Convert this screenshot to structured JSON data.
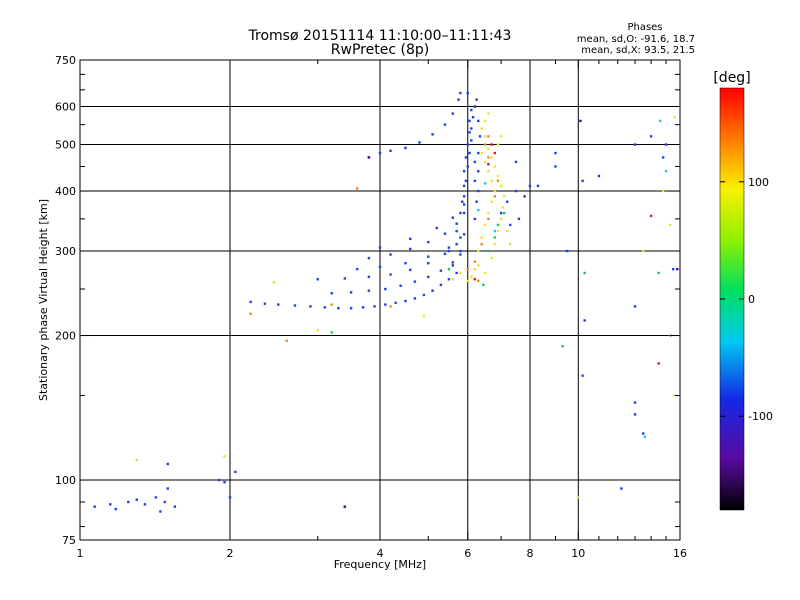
{
  "chart_data": {
    "type": "scatter",
    "title": "Tromsø 20151114 11:10:00–11:11:43",
    "subtitle": "RwPretec (8p)",
    "phases": {
      "heading": "Phases",
      "line1": "mean, sd,O: -91.6, 18.7",
      "line2": "mean, sd,X:  93.5, 21.5"
    },
    "xlabel": "Frequency [MHz]",
    "ylabel": "Stationary phase Virtual Height [km]",
    "xscale": "log",
    "yscale": "log",
    "xlim": [
      1,
      16
    ],
    "ylim": [
      75,
      750
    ],
    "xticks": [
      1,
      2,
      4,
      6,
      8,
      10,
      16
    ],
    "xtick_labels": [
      "1",
      "2",
      "4",
      "6",
      "8",
      "10",
      "16"
    ],
    "yticks": [
      75,
      100,
      200,
      300,
      400,
      500,
      600,
      750
    ],
    "ytick_labels": [
      "75",
      "100",
      "200",
      "300",
      "400",
      "500",
      "600",
      "750"
    ],
    "grid": true,
    "colorbar": {
      "label": "[deg]",
      "range": [
        -180,
        180
      ],
      "ticks": [
        100,
        0,
        -100
      ],
      "tick_labels": [
        "100",
        "0",
        "-100"
      ]
    },
    "series": [
      {
        "color": "#1e40e6",
        "points": [
          [
            1.07,
            88
          ],
          [
            1.15,
            89
          ],
          [
            1.18,
            87
          ],
          [
            1.25,
            90
          ],
          [
            1.3,
            91
          ],
          [
            1.35,
            89
          ],
          [
            1.42,
            92
          ],
          [
            1.45,
            86
          ],
          [
            1.48,
            90
          ],
          [
            1.5,
            96
          ],
          [
            1.55,
            88
          ],
          [
            1.9,
            100
          ],
          [
            1.95,
            99
          ],
          [
            2.0,
            92
          ],
          [
            2.05,
            104
          ],
          [
            1.5,
            108
          ],
          [
            2.2,
            235
          ],
          [
            2.35,
            233
          ],
          [
            2.5,
            232
          ],
          [
            2.7,
            231
          ],
          [
            2.9,
            230
          ],
          [
            3.1,
            229
          ],
          [
            3.3,
            228
          ],
          [
            3.5,
            228
          ],
          [
            3.7,
            229
          ],
          [
            3.9,
            230
          ],
          [
            4.1,
            232
          ],
          [
            4.3,
            234
          ],
          [
            4.5,
            236
          ],
          [
            4.7,
            239
          ],
          [
            4.9,
            243
          ],
          [
            5.1,
            248
          ],
          [
            5.3,
            255
          ],
          [
            5.5,
            262
          ],
          [
            5.7,
            270
          ],
          [
            3.2,
            245
          ],
          [
            3.5,
            246
          ],
          [
            3.8,
            248
          ],
          [
            4.1,
            250
          ],
          [
            4.4,
            254
          ],
          [
            4.7,
            259
          ],
          [
            5.0,
            265
          ],
          [
            5.3,
            273
          ],
          [
            5.6,
            284
          ],
          [
            5.8,
            295
          ],
          [
            3.0,
            262
          ],
          [
            3.4,
            263
          ],
          [
            3.8,
            265
          ],
          [
            4.2,
            268
          ],
          [
            4.6,
            274
          ],
          [
            5.0,
            283
          ],
          [
            5.4,
            296
          ],
          [
            5.7,
            310
          ],
          [
            5.9,
            325
          ],
          [
            3.8,
            290
          ],
          [
            4.2,
            295
          ],
          [
            4.6,
            303
          ],
          [
            5.0,
            313
          ],
          [
            5.4,
            326
          ],
          [
            5.7,
            342
          ],
          [
            5.9,
            360
          ],
          [
            3.6,
            275
          ],
          [
            4.0,
            278
          ],
          [
            4.5,
            283
          ],
          [
            5.0,
            292
          ],
          [
            5.5,
            305
          ],
          [
            5.8,
            320
          ],
          [
            4.0,
            305
          ],
          [
            4.6,
            318
          ],
          [
            5.2,
            335
          ],
          [
            5.6,
            352
          ],
          [
            5.9,
            375
          ],
          [
            5.5,
            300
          ],
          [
            5.7,
            330
          ],
          [
            5.8,
            360
          ],
          [
            5.9,
            390
          ],
          [
            5.95,
            420
          ],
          [
            6.0,
            450
          ],
          [
            6.05,
            480
          ],
          [
            6.1,
            510
          ],
          [
            6.1,
            540
          ],
          [
            6.15,
            570
          ],
          [
            6.2,
            600
          ],
          [
            6.25,
            620
          ],
          [
            6.0,
            640
          ],
          [
            5.85,
            380
          ],
          [
            5.9,
            410
          ],
          [
            5.9,
            440
          ],
          [
            5.95,
            470
          ],
          [
            6.0,
            500
          ],
          [
            6.05,
            530
          ],
          [
            6.05,
            560
          ],
          [
            6.1,
            590
          ],
          [
            5.6,
            280
          ],
          [
            5.8,
            300
          ],
          [
            6.2,
            420
          ],
          [
            6.3,
            440
          ],
          [
            6.2,
            460
          ],
          [
            6.3,
            480
          ],
          [
            6.2,
            350
          ],
          [
            6.25,
            380
          ],
          [
            6.3,
            400
          ],
          [
            6.35,
            520
          ],
          [
            6.3,
            560
          ],
          [
            6.2,
            600
          ],
          [
            4.0,
            480
          ],
          [
            4.2,
            485
          ],
          [
            4.5,
            492
          ],
          [
            4.8,
            505
          ],
          [
            5.1,
            525
          ],
          [
            5.4,
            550
          ],
          [
            5.6,
            580
          ],
          [
            5.75,
            620
          ],
          [
            5.8,
            640
          ],
          [
            7.0,
            360
          ],
          [
            7.2,
            380
          ],
          [
            7.5,
            400
          ],
          [
            7.8,
            390
          ],
          [
            7.3,
            340
          ],
          [
            7.6,
            350
          ],
          [
            8.0,
            410
          ],
          [
            8.3,
            410
          ],
          [
            9.0,
            450
          ],
          [
            9.5,
            300
          ],
          [
            3.8,
            470
          ],
          [
            7.5,
            460
          ],
          [
            9.0,
            480
          ],
          [
            10.2,
            420
          ],
          [
            11.0,
            430
          ],
          [
            13.0,
            500
          ],
          [
            14.0,
            520
          ],
          [
            14.8,
            470
          ],
          [
            15.0,
            500
          ],
          [
            15.5,
            275
          ],
          [
            13.0,
            230
          ],
          [
            13.0,
            145
          ],
          [
            13.0,
            137
          ],
          [
            13.5,
            125
          ],
          [
            10.2,
            165
          ],
          [
            10.3,
            215
          ],
          [
            12.2,
            96
          ],
          [
            3.4,
            88
          ]
        ]
      },
      {
        "color": "#f0e030",
        "points": [
          [
            6.5,
            270
          ],
          [
            6.7,
            290
          ],
          [
            6.8,
            310
          ],
          [
            6.9,
            330
          ],
          [
            7.0,
            350
          ],
          [
            7.05,
            370
          ],
          [
            7.1,
            390
          ],
          [
            7.0,
            410
          ],
          [
            6.9,
            430
          ],
          [
            6.8,
            450
          ],
          [
            6.7,
            470
          ],
          [
            6.6,
            490
          ],
          [
            6.5,
            520
          ],
          [
            6.4,
            540
          ],
          [
            6.5,
            560
          ],
          [
            6.6,
            580
          ],
          [
            6.3,
            300
          ],
          [
            6.4,
            320
          ],
          [
            6.5,
            340
          ],
          [
            6.6,
            360
          ],
          [
            6.7,
            380
          ],
          [
            6.8,
            400
          ],
          [
            6.7,
            420
          ],
          [
            6.6,
            440
          ],
          [
            6.5,
            460
          ],
          [
            6.4,
            480
          ],
          [
            7.2,
            330
          ],
          [
            7.3,
            310
          ],
          [
            6.1,
            265
          ],
          [
            6.3,
            280
          ],
          [
            5.8,
            270
          ],
          [
            5.6,
            262
          ],
          [
            6.0,
            260
          ],
          [
            6.2,
            275
          ],
          [
            6.9,
            500
          ],
          [
            7.0,
            520
          ],
          [
            2.45,
            258
          ],
          [
            3.0,
            205
          ],
          [
            4.9,
            220
          ],
          [
            1.3,
            110
          ],
          [
            1.95,
            112
          ],
          [
            10.0,
            92
          ],
          [
            14.8,
            400
          ],
          [
            15.3,
            340
          ],
          [
            15.6,
            570
          ],
          [
            13.5,
            300
          ],
          [
            15.6,
            150
          ]
        ]
      },
      {
        "color": "#f08a1e",
        "points": [
          [
            6.2,
            285
          ],
          [
            6.4,
            310
          ],
          [
            6.6,
            350
          ],
          [
            6.8,
            390
          ],
          [
            6.9,
            420
          ],
          [
            6.6,
            470
          ],
          [
            6.5,
            500
          ],
          [
            6.6,
            520
          ],
          [
            6.3,
            260
          ],
          [
            6.0,
            275
          ],
          [
            3.6,
            405
          ],
          [
            2.6,
            195
          ],
          [
            2.2,
            222
          ],
          [
            3.2,
            232
          ],
          [
            4.2,
            230
          ],
          [
            15.3,
            200
          ]
        ]
      },
      {
        "color": "#e01818",
        "points": [
          [
            6.7,
            500
          ],
          [
            6.8,
            480
          ],
          [
            6.6,
            455
          ],
          [
            14.5,
            175
          ],
          [
            14.0,
            355
          ],
          [
            6.2,
            262
          ]
        ]
      },
      {
        "color": "#19c85a",
        "points": [
          [
            6.6,
            300
          ],
          [
            6.9,
            340
          ],
          [
            7.1,
            360
          ],
          [
            6.8,
            320
          ],
          [
            3.2,
            203
          ],
          [
            5.5,
            275
          ],
          [
            6.45,
            255
          ],
          [
            10.3,
            270
          ],
          [
            9.3,
            190
          ],
          [
            14.5,
            270
          ]
        ]
      },
      {
        "color": "#25c8e8",
        "points": [
          [
            6.5,
            415
          ],
          [
            6.8,
            330
          ],
          [
            6.3,
            365
          ],
          [
            13.6,
            123
          ],
          [
            15.0,
            440
          ],
          [
            14.6,
            560
          ]
        ]
      },
      {
        "color": "#3a1096",
        "points": [
          [
            3.8,
            470
          ],
          [
            15.8,
            275
          ],
          [
            3.4,
            88
          ],
          [
            10.1,
            560
          ]
        ]
      }
    ]
  }
}
